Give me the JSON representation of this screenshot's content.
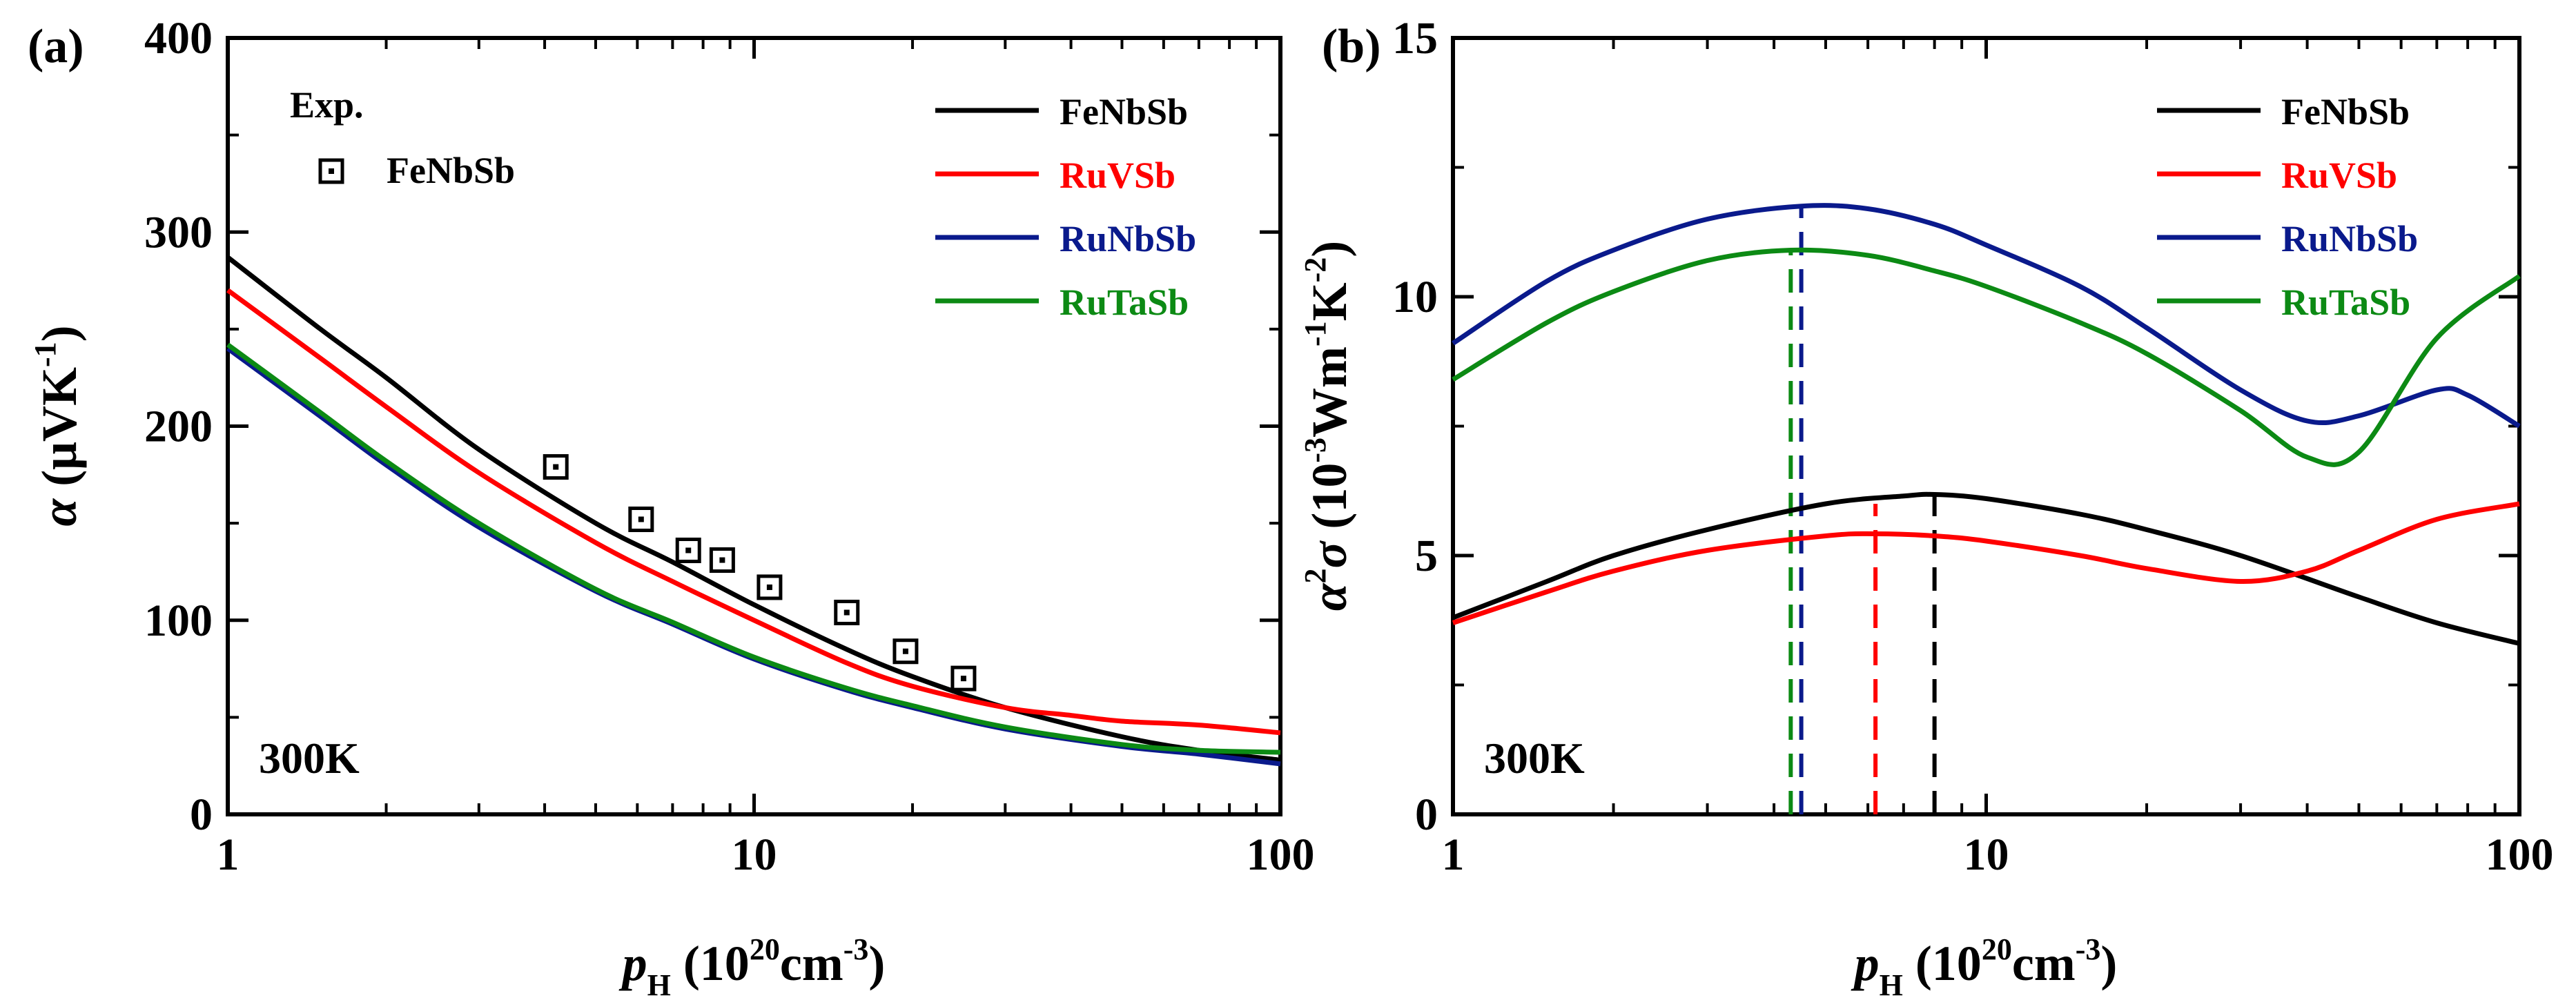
{
  "chart_data": [
    {
      "panel_label": "(a)",
      "type": "line",
      "xscale": "log",
      "xlim": [
        1,
        100
      ],
      "ylim": [
        0,
        400
      ],
      "xticks": [
        1,
        10,
        100
      ],
      "xtick_labels": [
        "1",
        "10",
        "100"
      ],
      "yticks": [
        0,
        100,
        200,
        300,
        400
      ],
      "ytick_labels": [
        "0",
        "100",
        "200",
        "300",
        "400"
      ],
      "xlabel": {
        "main": "p",
        "sub": "H",
        "unit_open": " (10",
        "unit_sup": "20",
        "unit_mid": "cm",
        "unit_sup2": "-3",
        "unit_close": ")"
      },
      "ylabel": {
        "main": "α",
        "unit_open": " (μVK",
        "unit_sup": "-1",
        "unit_close": ")"
      },
      "annotation": "300K",
      "legend_position": "top-right",
      "exp_legend_title": "Exp.",
      "series": [
        {
          "name": "FeNbSb",
          "color": "#000000",
          "x": [
            1,
            1.5,
            2,
            3,
            5,
            7,
            10,
            15,
            20,
            30,
            50,
            70,
            100
          ],
          "y": [
            287,
            250,
            225,
            188,
            150,
            130,
            108,
            85,
            71,
            55,
            40,
            33,
            28
          ]
        },
        {
          "name": "RuVSb",
          "color": "#ff0000",
          "x": [
            1,
            1.5,
            2,
            3,
            5,
            7,
            10,
            15,
            20,
            30,
            40,
            50,
            70,
            100
          ],
          "y": [
            270,
            235,
            210,
            176,
            140,
            120,
            100,
            78,
            66,
            55,
            51,
            48,
            46,
            42
          ]
        },
        {
          "name": "RuNbSb",
          "color": "#0a1a8c",
          "x": [
            1,
            1.5,
            2,
            3,
            5,
            7,
            10,
            15,
            20,
            30,
            50,
            70,
            100
          ],
          "y": [
            240,
            205,
            180,
            148,
            115,
            98,
            80,
            64,
            55,
            44,
            35,
            31,
            26
          ]
        },
        {
          "name": "RuTaSb",
          "color": "#0c8a14",
          "x": [
            1,
            1.5,
            2,
            3,
            5,
            7,
            10,
            15,
            20,
            30,
            50,
            70,
            100
          ],
          "y": [
            242,
            207,
            182,
            150,
            116,
            99,
            81,
            65,
            56,
            45,
            36,
            33,
            32
          ]
        }
      ],
      "experiment": {
        "name": "FeNbSb",
        "x": [
          4.2,
          6.1,
          7.5,
          8.7,
          10.7,
          15,
          19.4,
          25
        ],
        "y": [
          179,
          152,
          136,
          131,
          117,
          104,
          84,
          70
        ]
      }
    },
    {
      "panel_label": "(b)",
      "type": "line",
      "xscale": "log",
      "xlim": [
        1,
        100
      ],
      "ylim": [
        0,
        15
      ],
      "xticks": [
        1,
        10,
        100
      ],
      "xtick_labels": [
        "1",
        "10",
        "100"
      ],
      "yticks": [
        0,
        5,
        10,
        15
      ],
      "ytick_labels": [
        "0",
        "5",
        "10",
        "15"
      ],
      "xlabel": {
        "main": "p",
        "sub": "H",
        "unit_open": " (10",
        "unit_sup": "20",
        "unit_mid": "cm",
        "unit_sup2": "-3",
        "unit_close": ")"
      },
      "ylabel": {
        "main": "α",
        "sup": "2",
        "main2": "σ",
        "unit_open": " (10",
        "unit_sup": "-3",
        "unit_mid": "Wm",
        "unit_sup2": "-1",
        "unit_mid2": "K",
        "unit_sup3": "-2",
        "unit_close": ")"
      },
      "annotation": "300K",
      "legend_position": "top-right",
      "series": [
        {
          "name": "FeNbSb",
          "color": "#000000",
          "x": [
            1,
            1.5,
            2,
            3,
            5,
            7,
            8,
            10,
            15,
            20,
            30,
            50,
            70,
            100
          ],
          "y": [
            3.8,
            4.5,
            5.0,
            5.5,
            6.0,
            6.15,
            6.18,
            6.1,
            5.8,
            5.5,
            5.0,
            4.2,
            3.7,
            3.3
          ],
          "peak_x": 8
        },
        {
          "name": "RuVSb",
          "color": "#ff0000",
          "x": [
            1,
            1.5,
            2,
            3,
            5,
            6.2,
            8,
            10,
            15,
            20,
            30,
            40,
            50,
            70,
            100
          ],
          "y": [
            3.7,
            4.3,
            4.7,
            5.1,
            5.38,
            5.42,
            5.38,
            5.28,
            5.0,
            4.75,
            4.5,
            4.7,
            5.1,
            5.7,
            6.0
          ],
          "peak_x": 6.2
        },
        {
          "name": "RuNbSb",
          "color": "#0a1a8c",
          "x": [
            1,
            1.5,
            2,
            3,
            4.5,
            6,
            8,
            10,
            15,
            20,
            30,
            40,
            50,
            70,
            80,
            100
          ],
          "y": [
            9.1,
            10.3,
            10.9,
            11.5,
            11.75,
            11.7,
            11.4,
            11.0,
            10.2,
            9.4,
            8.2,
            7.6,
            7.7,
            8.2,
            8.1,
            7.5
          ],
          "peak_x": 4.5
        },
        {
          "name": "RuTaSb",
          "color": "#0c8a14",
          "x": [
            1,
            1.5,
            2,
            3,
            4.3,
            6,
            8,
            10,
            15,
            20,
            30,
            40,
            50,
            70,
            100
          ],
          "y": [
            8.4,
            9.5,
            10.1,
            10.7,
            10.9,
            10.8,
            10.5,
            10.2,
            9.5,
            8.9,
            7.8,
            6.9,
            7.0,
            9.2,
            10.4
          ],
          "peak_x": 4.3
        }
      ]
    }
  ]
}
